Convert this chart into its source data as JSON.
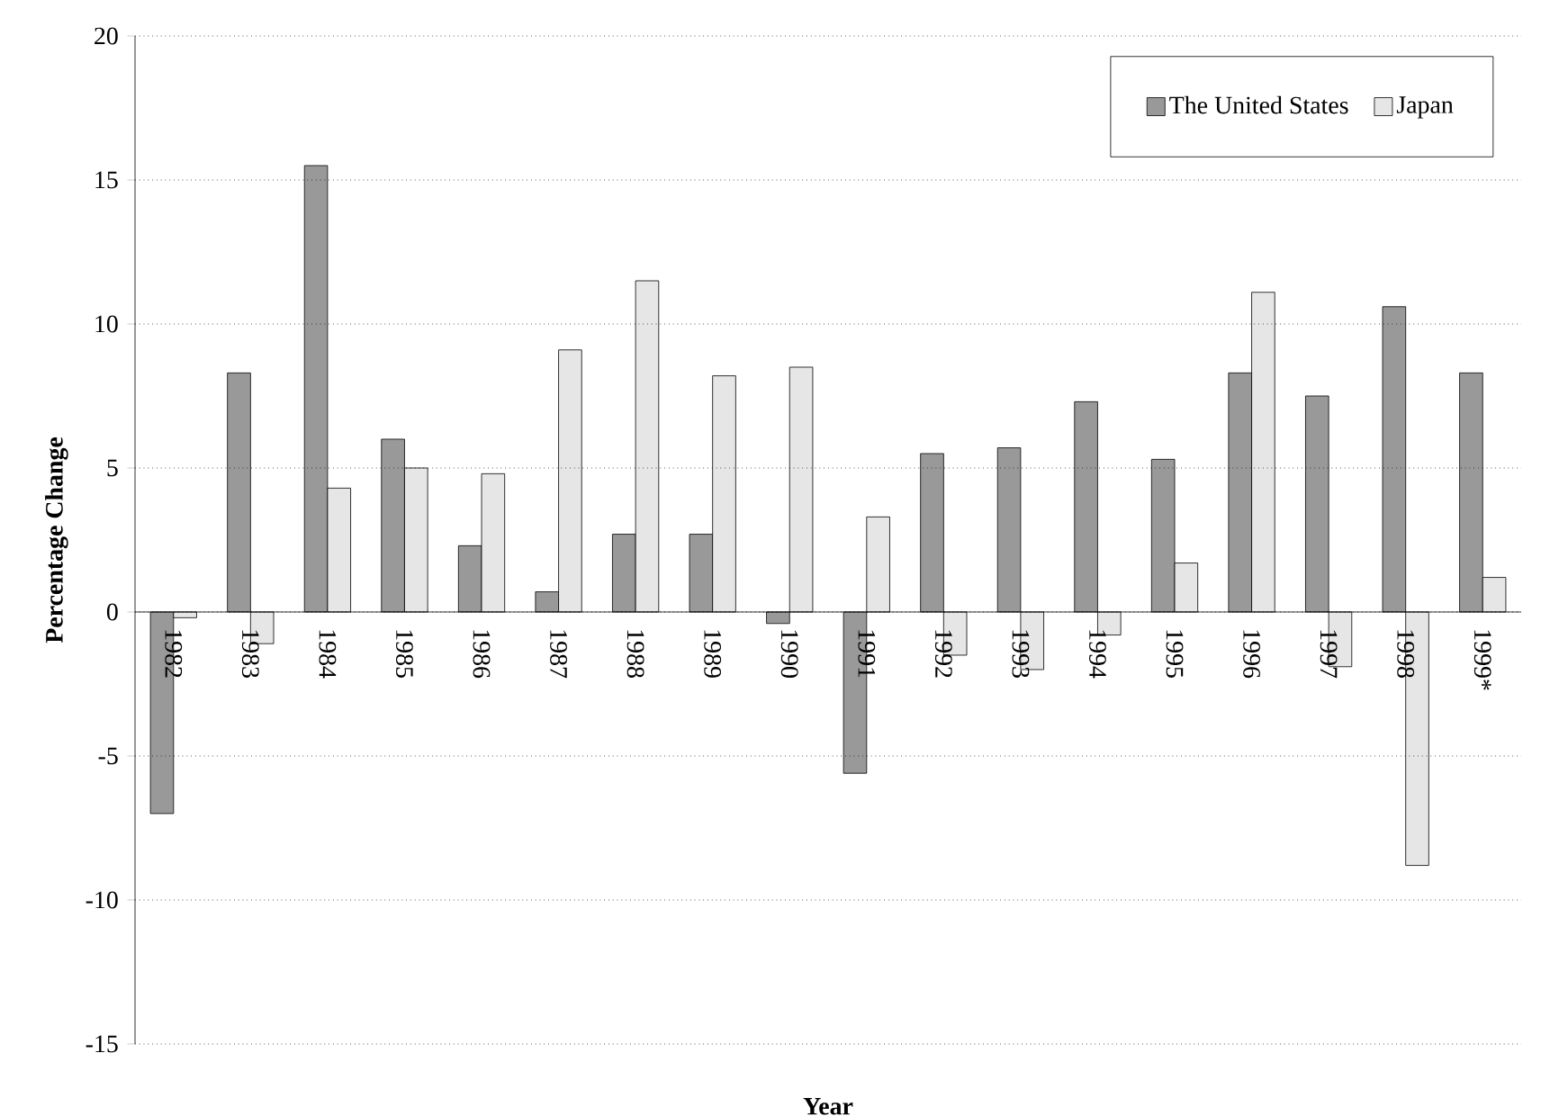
{
  "chart_data": {
    "type": "bar",
    "xlabel": "Year",
    "ylabel": "Percentage Change",
    "categories": [
      "1982",
      "1983",
      "1984",
      "1985",
      "1986",
      "1987",
      "1988",
      "1989",
      "1990",
      "1991",
      "1992",
      "1993",
      "1994",
      "1995",
      "1996",
      "1997",
      "1998",
      "1999*"
    ],
    "series": [
      {
        "name": "The United States",
        "color": "#999999",
        "values": [
          -7.0,
          8.3,
          15.5,
          6.0,
          2.3,
          0.7,
          2.7,
          2.7,
          -0.4,
          -5.6,
          5.5,
          5.7,
          7.3,
          5.3,
          8.3,
          7.5,
          10.6,
          8.3
        ]
      },
      {
        "name": "Japan",
        "color": "#e6e6e6",
        "values": [
          -0.2,
          -1.1,
          4.3,
          5.0,
          4.8,
          9.1,
          11.5,
          8.2,
          8.5,
          3.3,
          -1.5,
          -2.0,
          -0.8,
          1.7,
          11.1,
          -1.9,
          -8.8,
          1.2
        ]
      }
    ],
    "ylim": [
      -15,
      20
    ],
    "yticks": [
      -15,
      -10,
      -5,
      0,
      5,
      10,
      15,
      20
    ],
    "grid": "y",
    "legend": "top right"
  }
}
